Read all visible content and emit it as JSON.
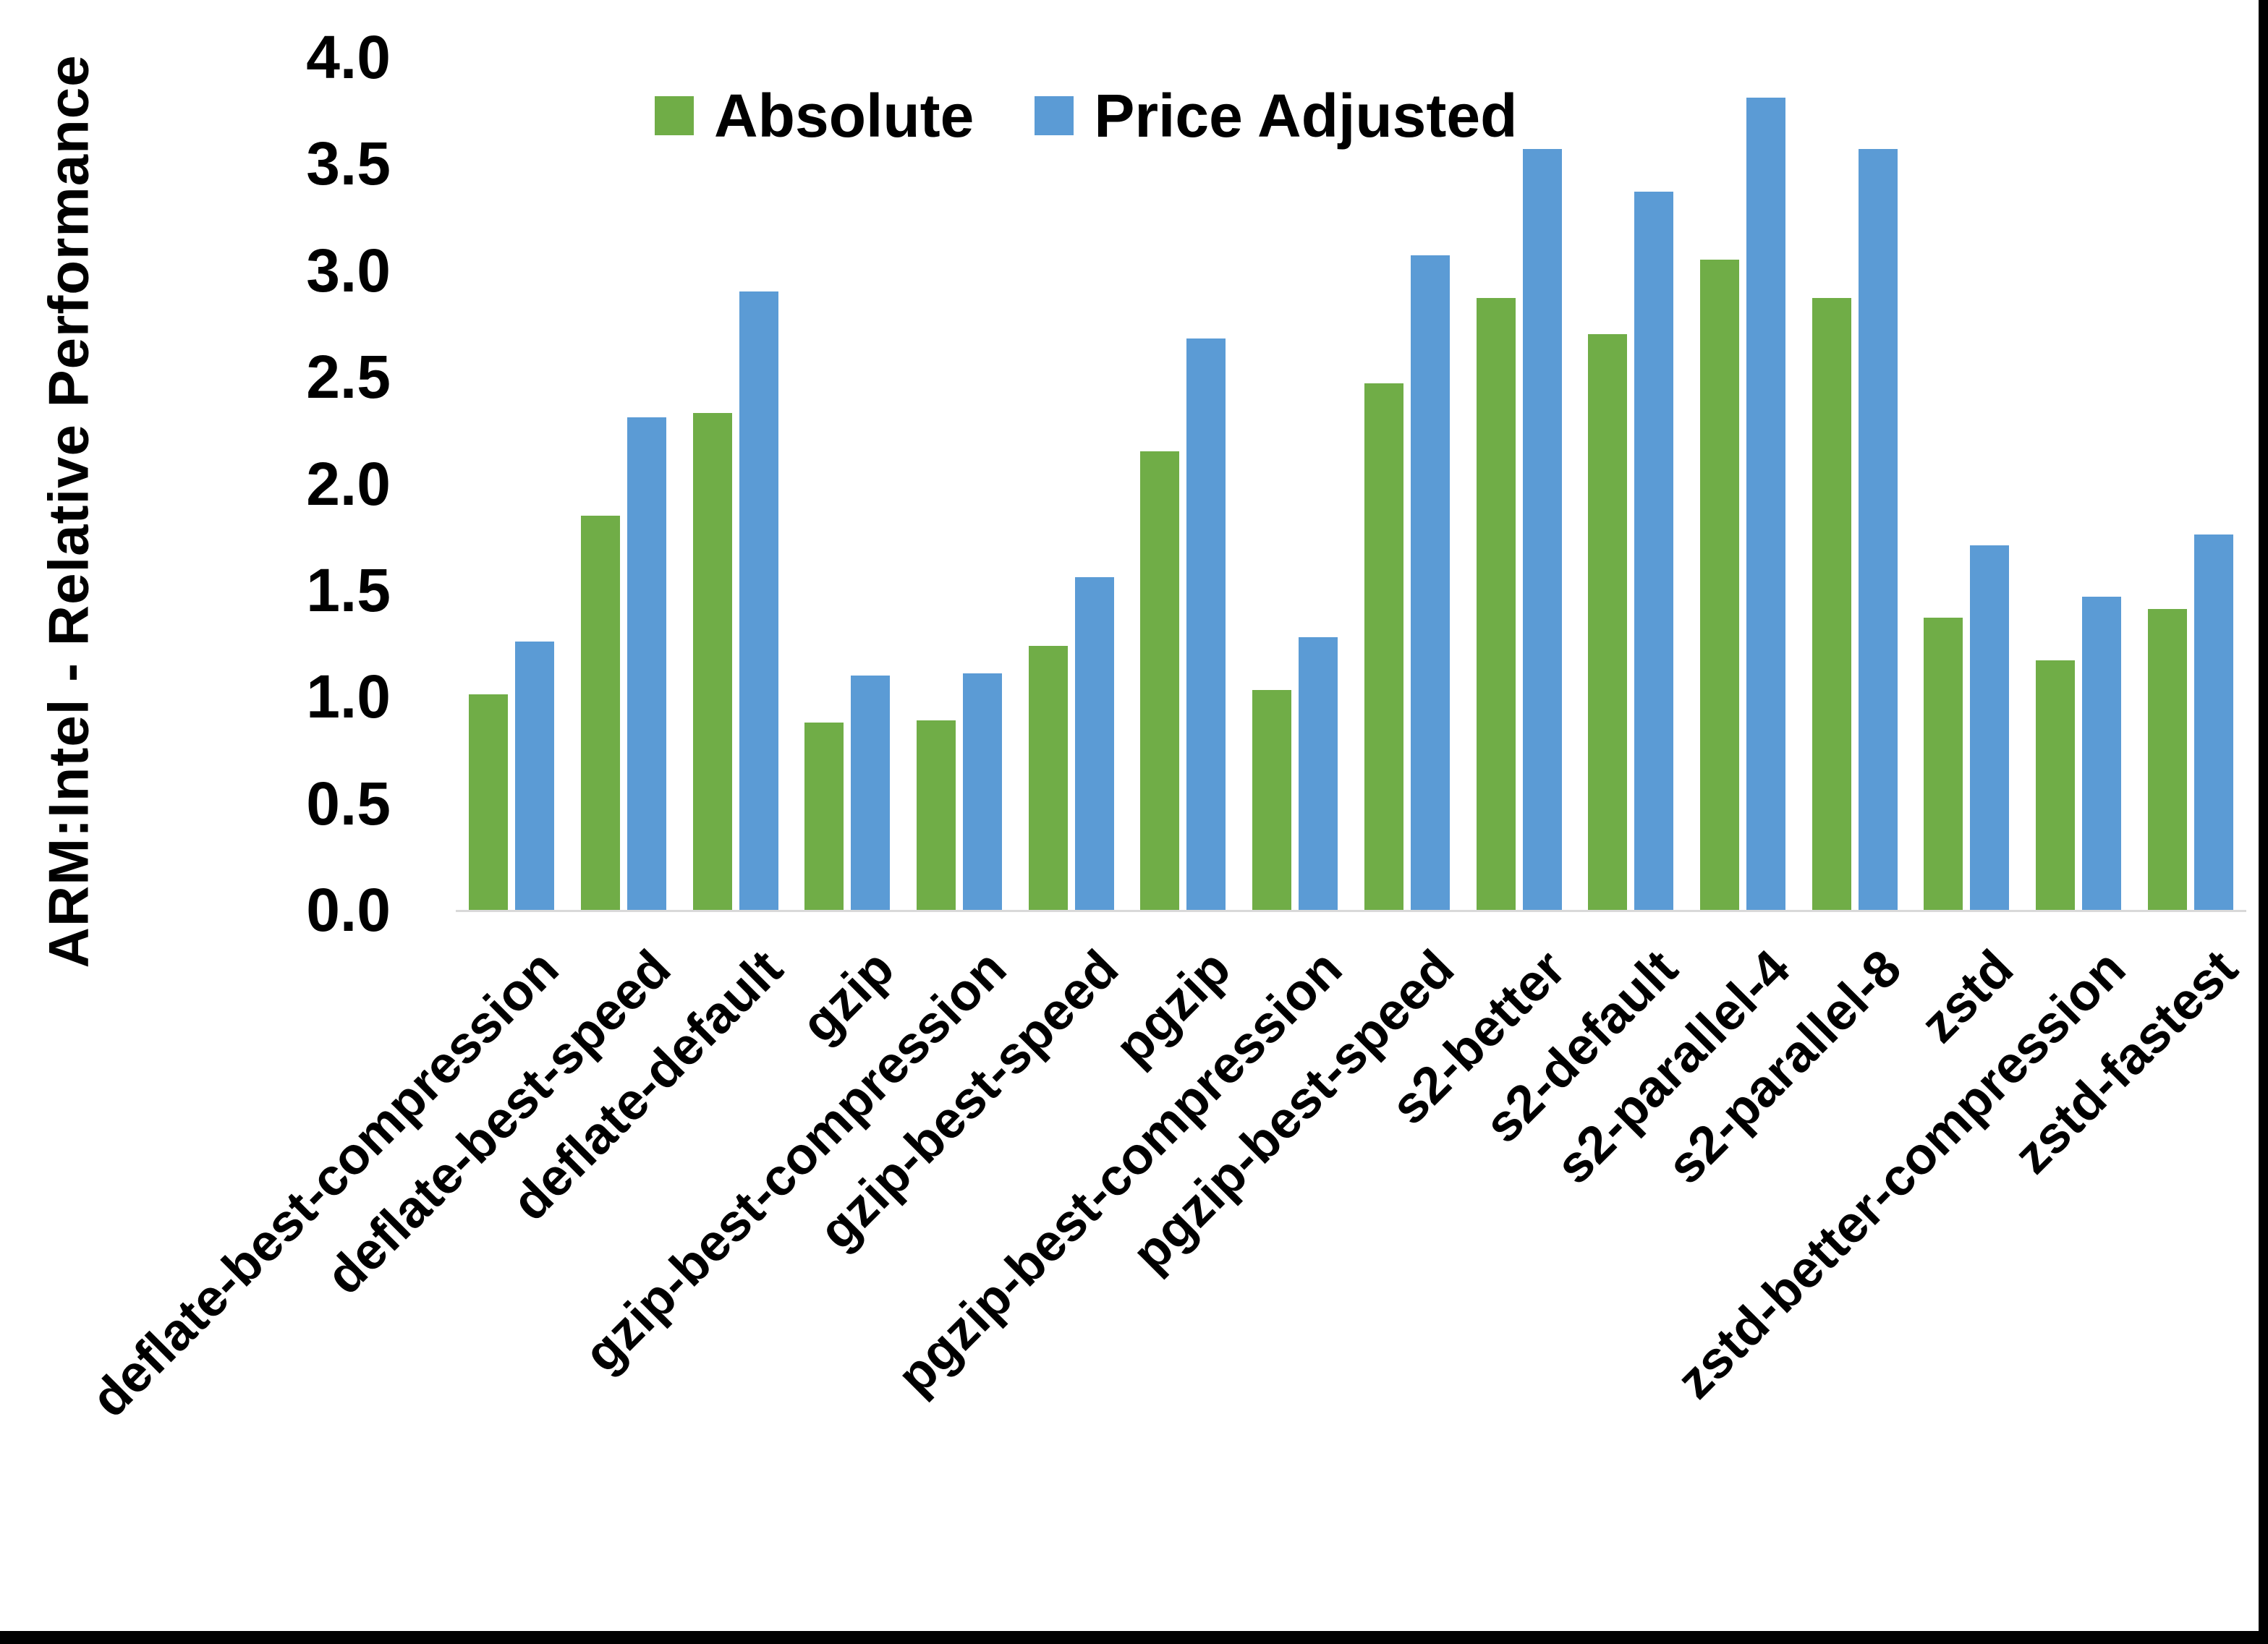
{
  "chart_data": {
    "type": "bar",
    "title": "",
    "xlabel": "",
    "ylabel": "ARM:Intel - Relative Performance",
    "ylim": [
      0.0,
      4.0
    ],
    "ytick_step": 0.5,
    "yticks": [
      "4.0",
      "3.5",
      "3.0",
      "2.5",
      "2.0",
      "1.5",
      "1.0",
      "0.5",
      "0.0"
    ],
    "grid": false,
    "legend_position": "top-center",
    "categories": [
      "deflate-best-compression",
      "deflate-best-speed",
      "deflate-default",
      "gzip",
      "gzip-best-compression",
      "gzip-best-speed",
      "pgzip",
      "pgzip-best-compression",
      "pgzip-best-speed",
      "s2-better",
      "s2-default",
      "s2-parallel-4",
      "s2-parallel-8",
      "zstd",
      "zstd-better-compression",
      "zstd-fastest"
    ],
    "series": [
      {
        "name": "Absolute",
        "color": "#70AD47",
        "values": [
          1.01,
          1.85,
          2.33,
          0.88,
          0.89,
          1.24,
          2.15,
          1.03,
          2.47,
          2.87,
          2.7,
          3.05,
          2.87,
          1.37,
          1.17,
          1.41
        ]
      },
      {
        "name": "Price Adjusted",
        "color": "#5B9BD5",
        "values": [
          1.26,
          2.31,
          2.9,
          1.1,
          1.11,
          1.56,
          2.68,
          1.28,
          3.07,
          3.57,
          3.37,
          3.81,
          3.57,
          1.71,
          1.47,
          1.76
        ]
      }
    ]
  },
  "colors": {
    "background": "#FFFFFF",
    "axis_line": "#D9D9D9",
    "text": "#000000",
    "frame": "#000000",
    "series_absolute": "#70AD47",
    "series_price_adjusted": "#5B9BD5"
  }
}
